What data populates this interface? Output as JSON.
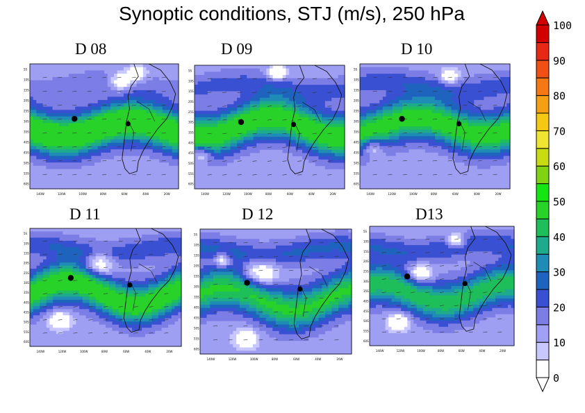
{
  "title": "Synoptic conditions, STJ (m/s), 250 hPa",
  "panels": [
    {
      "label": "D 08",
      "lat_ticks": [
        "5S",
        "10S",
        "15S",
        "20S",
        "25S",
        "30S",
        "35S",
        "40S",
        "45S",
        "50S",
        "55S",
        "60S"
      ],
      "lon_ticks": [
        "140W",
        "120W",
        "100W",
        "80W",
        "60W",
        "40W",
        "20W"
      ]
    },
    {
      "label": "D  09",
      "lat_ticks": [
        "5S",
        "10S",
        "15S",
        "20S",
        "25S",
        "30S",
        "35S",
        "40S",
        "45S",
        "50S",
        "55S",
        "60S"
      ],
      "lon_ticks": [
        "140W",
        "120W",
        "100W",
        "80W",
        "60W",
        "40W",
        "20W"
      ]
    },
    {
      "label": "D 10",
      "lat_ticks": [
        "5S",
        "10S",
        "15S",
        "20S",
        "25S",
        "30S",
        "35S",
        "40S",
        "45S",
        "50S",
        "55S",
        "60S"
      ],
      "lon_ticks": [
        "140W",
        "120W",
        "100W",
        "80W",
        "60W",
        "40W",
        "20W"
      ]
    },
    {
      "label": "D 11",
      "lat_ticks": [
        "5S",
        "10S",
        "15S",
        "20S",
        "25S",
        "30S",
        "35S",
        "40S",
        "45S",
        "50S",
        "55S",
        "60S"
      ],
      "lon_ticks": [
        "140W",
        "120W",
        "100W",
        "80W",
        "60W",
        "40W",
        "20W"
      ]
    },
    {
      "label": "D 12",
      "lat_ticks": [
        "5S",
        "10S",
        "15S",
        "20S",
        "25S",
        "30S",
        "35S",
        "40S",
        "45S",
        "50S",
        "55S",
        "60S"
      ],
      "lon_ticks": [
        "140W",
        "120W",
        "100W",
        "80W",
        "60W",
        "40W",
        "20W"
      ]
    },
    {
      "label": "D13",
      "lat_ticks": [
        "5S",
        "10S",
        "15S",
        "20S",
        "25S",
        "30S",
        "35S",
        "40S",
        "45S",
        "50S",
        "55S",
        "60S"
      ],
      "lon_ticks": [
        "140W",
        "120W",
        "100W",
        "80W",
        "60W",
        "40W",
        "20W"
      ]
    }
  ],
  "colorbar": {
    "ticks": [
      "100",
      "90",
      "80",
      "70",
      "60",
      "50",
      "40",
      "30",
      "20",
      "10",
      "0"
    ],
    "colors": [
      "#ffffff",
      "#c8c8ff",
      "#a0a0f5",
      "#7d7de6",
      "#3a50d2",
      "#1e64be",
      "#1e8cb4",
      "#1eaa8c",
      "#1ebe5a",
      "#28d228",
      "#14e614",
      "#82d214",
      "#c8dc14",
      "#f0e632",
      "#f5c814",
      "#f5a014",
      "#f57814",
      "#f05014",
      "#e62814",
      "#d20000"
    ],
    "cap_bottom": "#ffffff",
    "cap_top": "#d20000"
  }
}
